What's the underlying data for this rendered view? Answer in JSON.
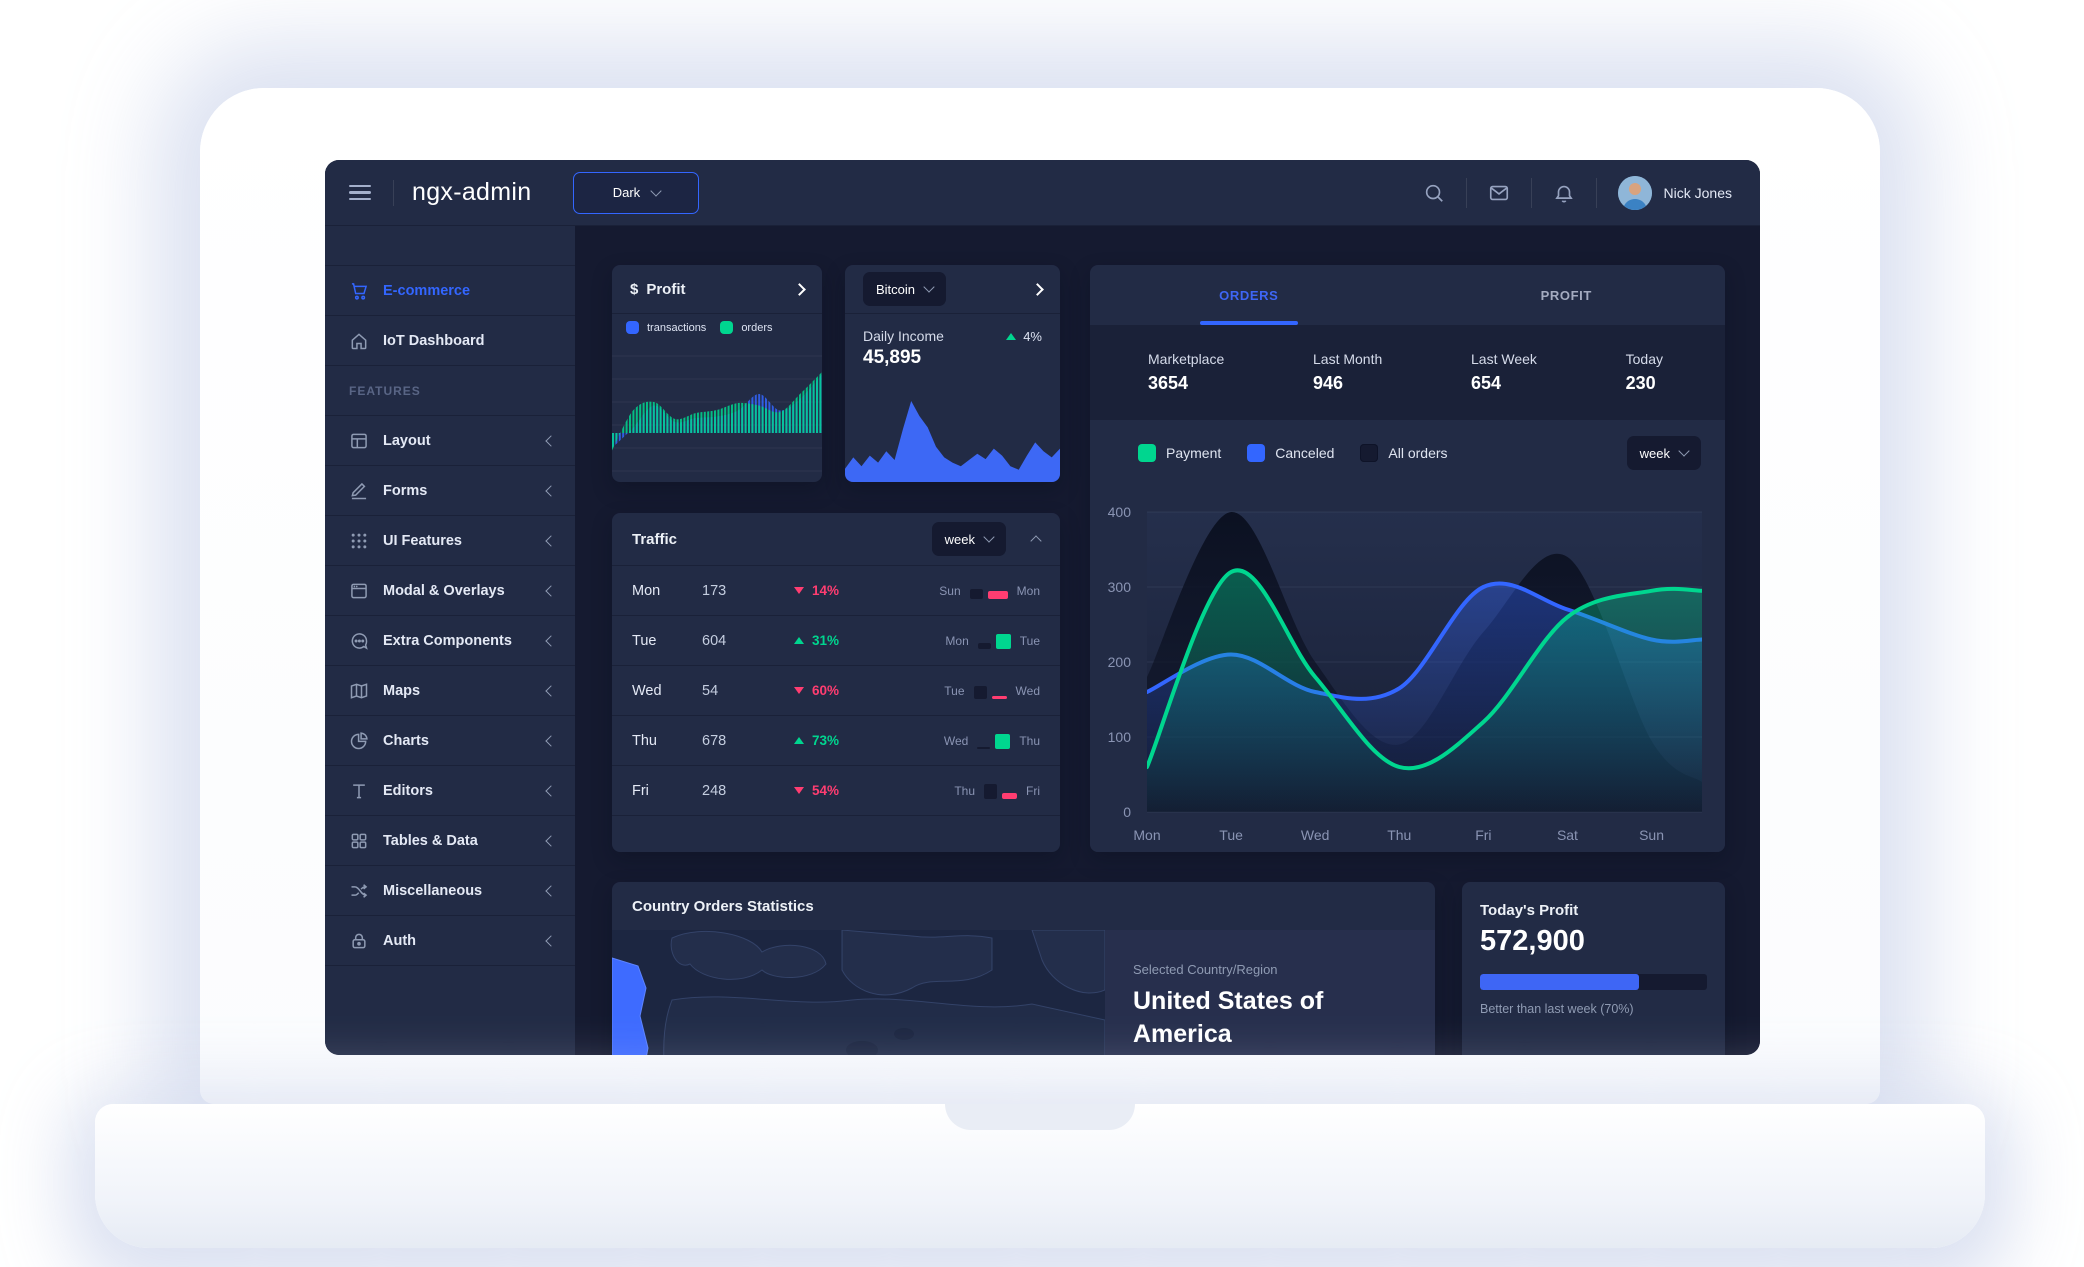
{
  "header": {
    "title": "ngx-admin",
    "theme_select_value": "Dark",
    "icons": [
      "search-icon",
      "email-icon",
      "notifications-bell-icon"
    ],
    "user_name": "Nick Jones"
  },
  "sidebar": {
    "section_label": "FEATURES",
    "items": [
      {
        "label": "E-commerce",
        "icon": "shopping-cart",
        "active": true
      },
      {
        "label": "IoT Dashboard",
        "icon": "home"
      },
      {
        "label": "Layout",
        "icon": "layout",
        "expandable": true
      },
      {
        "label": "Forms",
        "icon": "edit-pencil",
        "expandable": true
      },
      {
        "label": "UI Features",
        "icon": "keypad-grid",
        "expandable": true
      },
      {
        "label": "Modal & Overlays",
        "icon": "browser-window",
        "expandable": true
      },
      {
        "label": "Extra Components",
        "icon": "message-bubble",
        "expandable": true
      },
      {
        "label": "Maps",
        "icon": "map",
        "expandable": true
      },
      {
        "label": "Charts",
        "icon": "pie-chart",
        "expandable": true
      },
      {
        "label": "Editors",
        "icon": "text",
        "expandable": true
      },
      {
        "label": "Tables & Data",
        "icon": "grid",
        "expandable": true
      },
      {
        "label": "Miscellaneous",
        "icon": "shuffle",
        "expandable": true
      },
      {
        "label": "Auth",
        "icon": "lock",
        "expandable": true
      }
    ]
  },
  "profit_card": {
    "currency": "$",
    "title": "Profit",
    "legend": [
      {
        "label": "transactions",
        "color": "#3366ff"
      },
      {
        "label": "orders",
        "color": "#00d68f"
      }
    ]
  },
  "bitcoin_card": {
    "select_value": "Bitcoin",
    "label": "Daily Income",
    "value": "45,895",
    "delta": "4%",
    "delta_direction": "up"
  },
  "orders_card": {
    "tabs": [
      {
        "label": "ORDERS",
        "active": true
      },
      {
        "label": "PROFIT",
        "active": false
      }
    ],
    "stats": [
      {
        "label": "Marketplace",
        "value": "3654"
      },
      {
        "label": "Last Month",
        "value": "946"
      },
      {
        "label": "Last Week",
        "value": "654"
      },
      {
        "label": "Today",
        "value": "230"
      }
    ],
    "legend": [
      {
        "label": "Payment",
        "color": "#00d68f",
        "checked": true
      },
      {
        "label": "Canceled",
        "color": "#3366ff",
        "checked": true
      },
      {
        "label": "All orders",
        "color": null,
        "checked": false
      }
    ],
    "period_select": "week"
  },
  "traffic_card": {
    "title": "Traffic",
    "period_select": "week",
    "rows": [
      {
        "day": "Mon",
        "value": "173",
        "delta": "14%",
        "direction": "down",
        "compare": {
          "prev_label": "Sun",
          "cur_label": "Mon",
          "prev_bar_h": 10,
          "cur_bar_h": 8,
          "cur_bar_w": 20
        }
      },
      {
        "day": "Tue",
        "value": "604",
        "delta": "31%",
        "direction": "up",
        "compare": {
          "prev_label": "Mon",
          "cur_label": "Tue",
          "prev_bar_h": 6,
          "cur_bar_h": 15,
          "cur_bar_w": 15
        }
      },
      {
        "day": "Wed",
        "value": "54",
        "delta": "60%",
        "direction": "down",
        "compare": {
          "prev_label": "Tue",
          "cur_label": "Wed",
          "prev_bar_h": 13,
          "cur_bar_h": 3,
          "cur_bar_w": 15
        }
      },
      {
        "day": "Thu",
        "value": "678",
        "delta": "73%",
        "direction": "up",
        "compare": {
          "prev_label": "Wed",
          "cur_label": "Thu",
          "prev_bar_h": 2,
          "cur_bar_h": 15,
          "cur_bar_w": 15
        }
      },
      {
        "day": "Fri",
        "value": "248",
        "delta": "54%",
        "direction": "down",
        "compare": {
          "prev_label": "Thu",
          "cur_label": "Fri",
          "prev_bar_h": 15,
          "cur_bar_h": 6,
          "cur_bar_w": 15
        }
      }
    ]
  },
  "country_card": {
    "title": "Country Orders Statistics",
    "selected_label": "Selected Country/Region",
    "selected_country": "United States of America"
  },
  "today_profit_card": {
    "title": "Today's Profit",
    "value": "572,900",
    "progress_pct": 70,
    "caption": "Better than last week (70%)"
  },
  "colors": {
    "primary": "#3366ff",
    "success": "#00d68f",
    "danger": "#ff3d71",
    "card_bg": "#222b45",
    "layout_bg": "#151a30"
  },
  "chart_data": [
    {
      "type": "line",
      "title": "Orders week chart",
      "categories": [
        "Mon",
        "Tue",
        "Wed",
        "Thu",
        "Fri",
        "Sat",
        "Sun"
      ],
      "series": [
        {
          "name": "All orders",
          "role": "shadow",
          "color": "#0a0f1f",
          "values": [
            180,
            400,
            200,
            90,
            240,
            340,
            95
          ],
          "edge_value": 40
        },
        {
          "name": "Canceled",
          "role": "line",
          "color": "#3366ff",
          "values": [
            160,
            210,
            160,
            165,
            300,
            270,
            230
          ],
          "edge_value": 230
        },
        {
          "name": "Payment",
          "role": "line",
          "color": "#00d68f",
          "values": [
            60,
            320,
            180,
            60,
            120,
            260,
            295
          ],
          "edge_value": 295
        }
      ],
      "ylim": [
        0,
        400
      ],
      "yticks": [
        0,
        100,
        200,
        300,
        400
      ],
      "grid": true,
      "legend_position": "top"
    },
    {
      "type": "area",
      "title": "Profit mini chart",
      "series": [
        {
          "name": "transactions",
          "color": "#3366ff",
          "values": [
            -30,
            10,
            55,
            22,
            30,
            33,
            45,
            78,
            45,
            70,
            118
          ]
        },
        {
          "name": "orders",
          "color": "#00d68f",
          "values": [
            -35,
            45,
            62,
            28,
            40,
            46,
            60,
            55,
            42,
            80,
            122
          ]
        }
      ],
      "baseline": 0
    },
    {
      "type": "area",
      "title": "Bitcoin daily income mini chart",
      "color": "#3d68f5",
      "values": [
        15,
        28,
        18,
        30,
        22,
        35,
        25,
        60,
        92,
        75,
        62,
        40,
        28,
        22,
        18,
        25,
        32,
        26,
        38,
        30,
        18,
        14,
        30,
        45,
        35,
        28,
        38
      ]
    }
  ]
}
